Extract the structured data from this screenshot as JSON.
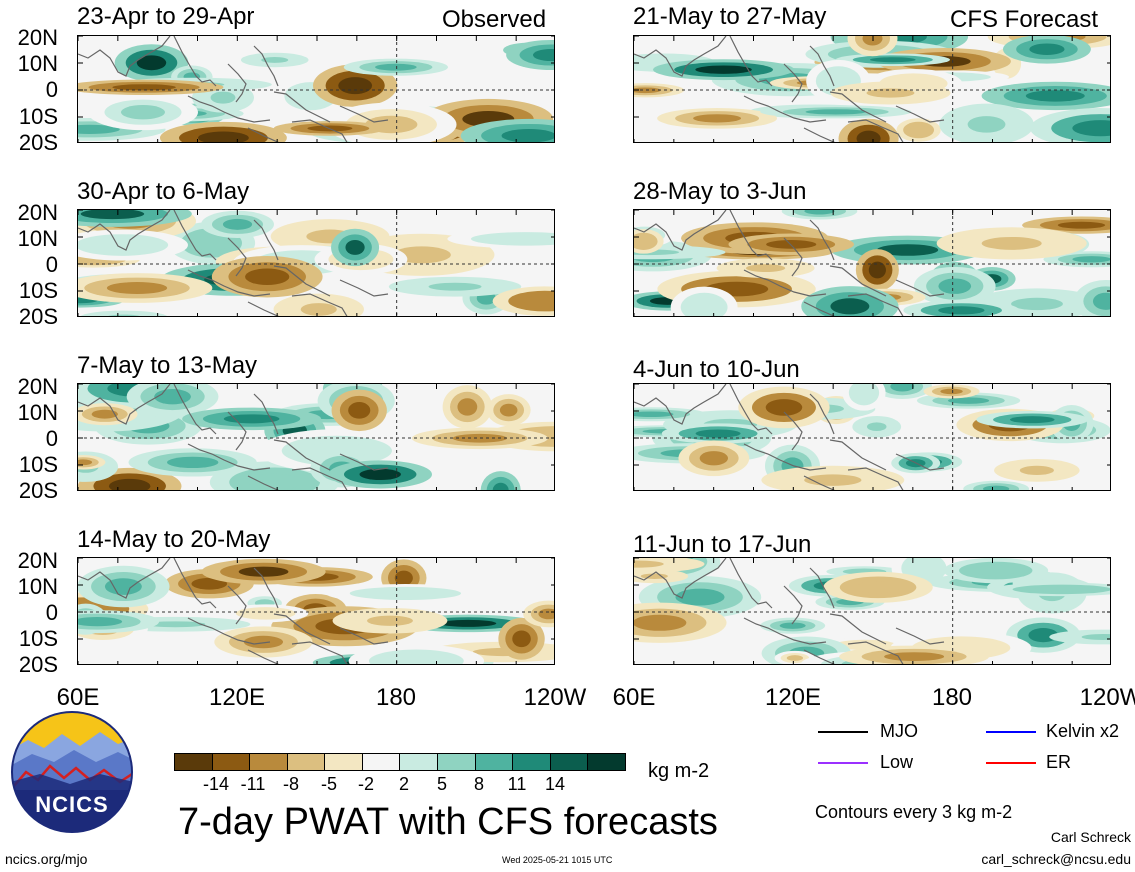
{
  "header": {
    "observed_label": "Observed",
    "forecast_label": "CFS Forecast"
  },
  "panels": {
    "left": [
      {
        "title": "23-Apr to 29-Apr"
      },
      {
        "title": "30-Apr to 6-May"
      },
      {
        "title": "7-May to 13-May"
      },
      {
        "title": "14-May to 20-May"
      }
    ],
    "right": [
      {
        "title": "21-May to 27-May"
      },
      {
        "title": "28-May to 3-Jun"
      },
      {
        "title": "4-Jun to 10-Jun"
      },
      {
        "title": "11-Jun to 17-Jun"
      }
    ]
  },
  "axes": {
    "lat_labels": [
      "20N",
      "10N",
      "0",
      "10S",
      "20S"
    ],
    "lon_labels": [
      "60E",
      "120E",
      "180",
      "120W"
    ]
  },
  "colorbar": {
    "labels": [
      "-14",
      "-11",
      "-8",
      "-5",
      "-2",
      "2",
      "5",
      "8",
      "11",
      "14"
    ],
    "colors": [
      "#5a3a0a",
      "#8c5a12",
      "#b98a3c",
      "#dcbf80",
      "#f3e7c2",
      "#f5f5f5",
      "#c9ebe1",
      "#8fd3c1",
      "#4fb3a0",
      "#1f8a78",
      "#0b5e4e",
      "#033a2e"
    ],
    "unit": "kg m-2"
  },
  "title": "7-day PWAT with CFS forecasts",
  "logo": {
    "text": "NCICS"
  },
  "legend": {
    "items": [
      {
        "label": "MJO",
        "color": "#000000"
      },
      {
        "label": "Kelvin x2",
        "color": "#0000ff"
      },
      {
        "label": "Low",
        "color": "#9b30ff"
      },
      {
        "label": "ER",
        "color": "#ff0000"
      }
    ],
    "contours_note": "Contours every 3 kg m-2"
  },
  "footer": {
    "url": "ncics.org/mjo",
    "timestamp": "Wed 2025-05-21 1015 UTC",
    "author": "Carl Schreck",
    "email": "carl_schreck@ncsu.edu"
  }
}
